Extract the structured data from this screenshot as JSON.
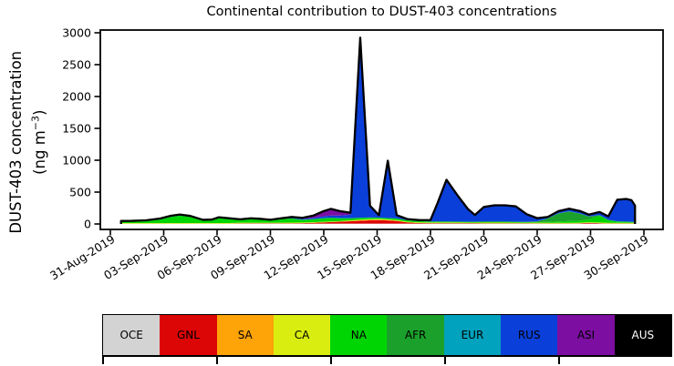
{
  "title": "Continental contribution to DUST-403 concentrations",
  "y_axis_label": {
    "line1": "DUST-403 concentration",
    "line2_pre": "(ng m",
    "sup": "−3",
    "line2_post": ")"
  },
  "chart_data": {
    "type": "area",
    "stacked": true,
    "title": "Continental contribution to DUST-403 concentrations",
    "xlabel": "",
    "ylabel": "DUST-403 concentration (ng m−3)",
    "ylim": [
      0,
      3000
    ],
    "grid": false,
    "legend_position": "bottom",
    "outline_color": "#000000",
    "x_unit": "days since 31-Aug-2019",
    "x": [
      0.6,
      1.2,
      2,
      2.8,
      3.4,
      3.9,
      4.5,
      5.2,
      5.7,
      6.1,
      6.7,
      7.3,
      7.9,
      8.4,
      9,
      9.6,
      10.2,
      10.8,
      11.4,
      12,
      12.4,
      12.9,
      13.5,
      14.05,
      14.6,
      15.1,
      15.6,
      16.1,
      16.7,
      17.4,
      18,
      18.4,
      18.9,
      19.5,
      20.1,
      20.5,
      21,
      21.6,
      22.2,
      22.8,
      23.4,
      24,
      24.6,
      25.2,
      25.8,
      26.4,
      26.9,
      27.5,
      28,
      28.5,
      29,
      29.3,
      29.5
    ],
    "y_ticks": [
      0,
      500,
      1000,
      1500,
      2000,
      2500,
      3000
    ],
    "x_ticks": {
      "days": [
        0,
        3,
        6,
        9,
        12,
        15,
        18,
        21,
        24,
        27,
        30
      ],
      "labels": [
        "31-Aug-2019",
        "03-Sep-2019",
        "06-Sep-2019",
        "09-Sep-2019",
        "12-Sep-2019",
        "15-Sep-2019",
        "18-Sep-2019",
        "21-Sep-2019",
        "24-Sep-2019",
        "27-Sep-2019",
        "30-Sep-2019"
      ]
    },
    "series": [
      {
        "name": "OCE",
        "color": "#d3d3d3",
        "label_color": "#000000",
        "values": [
          5,
          5,
          5,
          5,
          5,
          5,
          5,
          5,
          5,
          5,
          5,
          5,
          5,
          5,
          5,
          5,
          5,
          5,
          5,
          5,
          5,
          5,
          5,
          5,
          5,
          5,
          5,
          5,
          5,
          5,
          5,
          5,
          5,
          5,
          5,
          5,
          5,
          5,
          5,
          5,
          5,
          5,
          5,
          5,
          5,
          5,
          5,
          5,
          5,
          5,
          5,
          5,
          5
        ]
      },
      {
        "name": "GNL",
        "color": "#dd0606",
        "label_color": "#000000",
        "values": [
          0,
          0,
          0,
          0,
          0,
          0,
          0,
          0,
          0,
          0,
          0,
          4,
          5,
          5,
          5,
          5,
          6,
          8,
          12,
          20,
          25,
          30,
          38,
          45,
          52,
          55,
          50,
          42,
          20,
          10,
          8,
          8,
          8,
          8,
          7,
          7,
          6,
          6,
          6,
          5,
          5,
          4,
          3,
          3,
          3,
          5,
          12,
          8,
          3,
          3,
          3,
          2,
          2
        ]
      },
      {
        "name": "SA",
        "color": "#ffa408",
        "label_color": "#000000",
        "values": [
          0,
          0,
          0,
          0,
          0,
          0,
          0,
          0,
          0,
          0,
          0,
          0,
          0,
          0,
          0,
          0,
          0,
          0,
          0,
          0,
          0,
          0,
          4,
          8,
          8,
          8,
          6,
          4,
          0,
          0,
          0,
          0,
          0,
          0,
          0,
          0,
          0,
          0,
          0,
          0,
          0,
          0,
          0,
          0,
          0,
          0,
          0,
          0,
          0,
          0,
          0,
          0,
          0
        ]
      },
      {
        "name": "CA",
        "color": "#d9ee10",
        "label_color": "#000000",
        "values": [
          10,
          10,
          10,
          10,
          10,
          10,
          10,
          10,
          10,
          10,
          10,
          10,
          10,
          10,
          10,
          10,
          10,
          10,
          10,
          10,
          10,
          10,
          10,
          10,
          10,
          10,
          10,
          10,
          10,
          10,
          10,
          10,
          10,
          10,
          10,
          10,
          10,
          10,
          10,
          10,
          10,
          10,
          10,
          10,
          10,
          10,
          10,
          10,
          10,
          10,
          10,
          10,
          10
        ]
      },
      {
        "name": "NA",
        "color": "#00d504",
        "label_color": "#000000",
        "values": [
          20,
          22,
          28,
          55,
          95,
          115,
          95,
          38,
          42,
          75,
          60,
          42,
          55,
          48,
          35,
          55,
          65,
          42,
          48,
          55,
          55,
          45,
          32,
          28,
          24,
          20,
          20,
          24,
          22,
          18,
          15,
          15,
          14,
          12,
          12,
          12,
          14,
          15,
          15,
          14,
          12,
          10,
          14,
          22,
          28,
          32,
          45,
          105,
          45,
          22,
          18,
          15,
          12
        ]
      },
      {
        "name": "AFR",
        "color": "#1ba12b",
        "label_color": "#000000",
        "values": [
          0,
          0,
          0,
          0,
          0,
          0,
          0,
          0,
          0,
          0,
          0,
          0,
          0,
          0,
          0,
          0,
          0,
          0,
          0,
          0,
          0,
          0,
          0,
          0,
          0,
          0,
          0,
          0,
          0,
          0,
          0,
          0,
          0,
          0,
          0,
          0,
          0,
          0,
          0,
          0,
          0,
          10,
          55,
          125,
          150,
          110,
          45,
          10,
          0,
          0,
          0,
          0,
          0
        ]
      },
      {
        "name": "EUR",
        "color": "#00a2bd",
        "label_color": "#000000",
        "values": [
          2,
          2,
          2,
          2,
          2,
          2,
          2,
          2,
          2,
          2,
          2,
          2,
          2,
          2,
          2,
          2,
          2,
          2,
          2,
          2,
          2,
          2,
          2,
          2,
          2,
          2,
          2,
          2,
          2,
          2,
          2,
          2,
          2,
          2,
          2,
          2,
          2,
          2,
          2,
          2,
          2,
          2,
          2,
          2,
          2,
          2,
          2,
          2,
          2,
          2,
          2,
          2,
          2
        ]
      },
      {
        "name": "RUS",
        "color": "#0b3fd9",
        "label_color": "#000000",
        "values": [
          10,
          10,
          12,
          14,
          16,
          16,
          14,
          10,
          10,
          13,
          12,
          10,
          12,
          11,
          9,
          12,
          14,
          12,
          18,
          30,
          35,
          40,
          55,
          2790,
          170,
          30,
          890,
          45,
          18,
          15,
          22,
          290,
          655,
          420,
          200,
          105,
          230,
          255,
          255,
          240,
          120,
          50,
          22,
          35,
          42,
          40,
          28,
          48,
          55,
          330,
          345,
          330,
          250
        ]
      },
      {
        "name": "ASI",
        "color": "#7c0fa2",
        "label_color": "#000000",
        "values": [
          0,
          0,
          0,
          0,
          0,
          0,
          0,
          0,
          0,
          0,
          0,
          0,
          0,
          0,
          0,
          0,
          8,
          18,
          35,
          80,
          105,
          70,
          30,
          35,
          15,
          8,
          10,
          6,
          0,
          0,
          0,
          0,
          0,
          0,
          0,
          0,
          0,
          0,
          0,
          0,
          0,
          0,
          0,
          0,
          0,
          0,
          0,
          0,
          0,
          8,
          10,
          9,
          8
        ]
      },
      {
        "name": "AUS",
        "color": "#000000",
        "label_color": "#ffffff",
        "values": [
          0,
          0,
          0,
          0,
          0,
          0,
          0,
          0,
          0,
          0,
          0,
          0,
          0,
          0,
          0,
          0,
          0,
          0,
          0,
          0,
          0,
          0,
          0,
          0,
          0,
          0,
          0,
          0,
          0,
          0,
          0,
          0,
          0,
          0,
          0,
          0,
          0,
          0,
          0,
          0,
          0,
          0,
          0,
          0,
          0,
          0,
          0,
          0,
          0,
          0,
          0,
          0,
          0
        ]
      }
    ]
  }
}
